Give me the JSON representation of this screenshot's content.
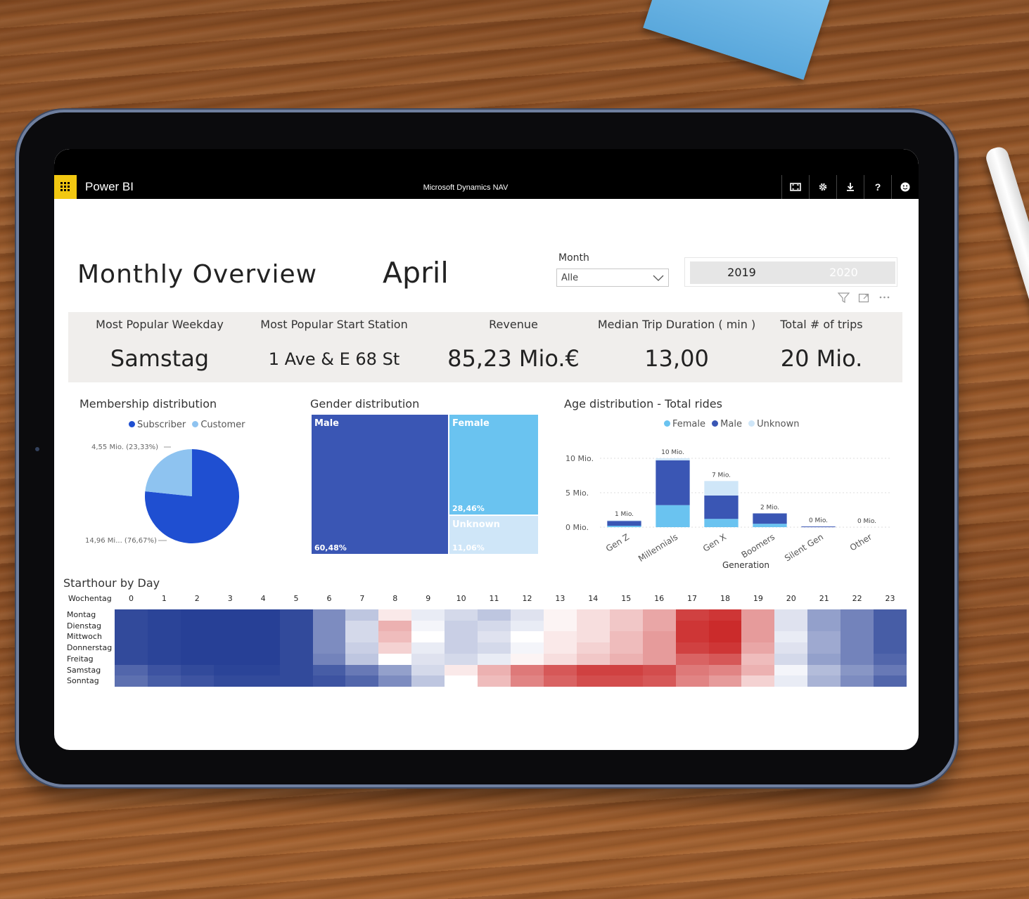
{
  "app": {
    "name": "Power BI",
    "report": "Microsoft Dynamics NAV"
  },
  "toolbar": {
    "icons": [
      "fullscreen-icon",
      "gear-icon",
      "download-icon",
      "help-icon",
      "feedback-icon"
    ],
    "help_glyph": "?"
  },
  "page": {
    "title": "Monthly Overview",
    "selected_month": "April"
  },
  "slicer": {
    "label": "Month",
    "value": "Alle",
    "years": [
      "2019",
      "2020"
    ]
  },
  "kpis": [
    {
      "label": "Most Popular Weekday",
      "value": "Samstag"
    },
    {
      "label": "Most Popular Start Station",
      "value": "1 Ave & E 68 St"
    },
    {
      "label": "Revenue",
      "value": "85,23 Mio.€"
    },
    {
      "label": "Median Trip Duration ( min )",
      "value": "13,00"
    },
    {
      "label": "Total # of trips",
      "value": "20 Mio."
    }
  ],
  "colors": {
    "accent": "#f2c811",
    "dark_blue": "#3a56b4",
    "light_blue": "#6ac3f0",
    "pale_blue": "#cfe6f8",
    "red": "#c62828"
  },
  "membership": {
    "title": "Membership distribution",
    "legend": [
      "Subscriber",
      "Customer"
    ],
    "labels": {
      "customer": "4,55 Mio. (23,33%)",
      "subscriber": "14,96 Mi... (76,67%)"
    }
  },
  "gender": {
    "title": "Gender distribution",
    "labels": {
      "male": "Male",
      "female": "Female",
      "unknown": "Unknown"
    },
    "pcts": {
      "male": "60,48%",
      "female": "28,46%",
      "unknown": "11,06%"
    }
  },
  "age": {
    "title": "Age distribution - Total rides",
    "xlabel": "Generation",
    "legend": [
      "Female",
      "Male",
      "Unknown"
    ],
    "bar_labels": [
      "1 Mio.",
      "10 Mio.",
      "7 Mio.",
      "2 Mio.",
      "0 Mio.",
      "0 Mio."
    ]
  },
  "heatmap": {
    "title": "Starthour by Day",
    "row_header": "Wochentag"
  },
  "chart_data": [
    {
      "type": "pie",
      "title": "Membership distribution",
      "categories": [
        "Subscriber",
        "Customer"
      ],
      "values": [
        14.96,
        4.55
      ],
      "unit": "Mio.",
      "colors": [
        "#1f4fd1",
        "#8ec3f0"
      ]
    },
    {
      "type": "treemap",
      "title": "Gender distribution",
      "categories": [
        "Male",
        "Female",
        "Unknown"
      ],
      "values": [
        60.48,
        28.46,
        11.06
      ],
      "unit": "%"
    },
    {
      "type": "bar",
      "title": "Age distribution - Total rides",
      "xlabel": "Generation",
      "categories": [
        "Gen Z",
        "Millennials",
        "Gen X",
        "Boomers",
        "Silent Gen",
        "Other"
      ],
      "series": [
        {
          "name": "Female",
          "color": "#6ac3f0",
          "values": [
            0.2,
            3.2,
            1.2,
            0.5,
            0.0,
            0.0
          ]
        },
        {
          "name": "Male",
          "color": "#3a56b4",
          "values": [
            0.7,
            6.5,
            3.4,
            1.5,
            0.1,
            0.0
          ]
        },
        {
          "name": "Unknown",
          "color": "#cfe6f8",
          "values": [
            0.1,
            0.3,
            2.1,
            0.0,
            0.0,
            0.0
          ]
        }
      ],
      "totals_labels": [
        "1 Mio.",
        "10 Mio.",
        "7 Mio.",
        "2 Mio.",
        "0 Mio.",
        "0 Mio."
      ],
      "yticks": [
        "0 Mio.",
        "5 Mio.",
        "10 Mio."
      ],
      "ylim": [
        0,
        10
      ],
      "grid": true,
      "legend_position": "top"
    },
    {
      "type": "heatmap",
      "title": "Starthour by Day",
      "row_header": "Wochentag",
      "rows": [
        "Montag",
        "Dienstag",
        "Mittwoch",
        "Donnerstag",
        "Freitag",
        "Samstag",
        "Sonntag"
      ],
      "columns": [
        "0",
        "1",
        "2",
        "3",
        "4",
        "5",
        "6",
        "7",
        "8",
        "9",
        "10",
        "11",
        "12",
        "13",
        "14",
        "15",
        "16",
        "17",
        "18",
        "19",
        "20",
        "21",
        "22",
        "23"
      ],
      "values": [
        [
          -0.95,
          -0.98,
          -1,
          -1,
          -1,
          -0.95,
          -0.6,
          -0.3,
          0.1,
          -0.1,
          -0.2,
          -0.3,
          -0.15,
          0.05,
          0.15,
          0.25,
          0.4,
          0.85,
          0.9,
          0.45,
          -0.15,
          -0.5,
          -0.65,
          -0.85
        ],
        [
          -0.95,
          -0.98,
          -1,
          -1,
          -1,
          -0.95,
          -0.6,
          -0.2,
          0.35,
          -0.05,
          -0.25,
          -0.2,
          -0.1,
          0.05,
          0.15,
          0.25,
          0.4,
          0.9,
          0.95,
          0.45,
          -0.15,
          -0.5,
          -0.65,
          -0.85
        ],
        [
          -0.95,
          -0.98,
          -1,
          -1,
          -1,
          -0.95,
          -0.6,
          -0.2,
          0.3,
          0.0,
          -0.25,
          -0.15,
          0.0,
          0.1,
          0.15,
          0.3,
          0.45,
          0.9,
          0.95,
          0.45,
          -0.1,
          -0.45,
          -0.65,
          -0.85
        ],
        [
          -0.95,
          -0.98,
          -1,
          -1,
          -1,
          -0.95,
          -0.6,
          -0.25,
          0.2,
          -0.1,
          -0.25,
          -0.2,
          -0.05,
          0.1,
          0.2,
          0.3,
          0.45,
          0.85,
          0.9,
          0.4,
          -0.15,
          -0.45,
          -0.65,
          -0.85
        ],
        [
          -0.95,
          -0.98,
          -1,
          -1,
          -1,
          -0.95,
          -0.65,
          -0.3,
          0.0,
          -0.15,
          -0.2,
          -0.1,
          0.05,
          0.15,
          0.25,
          0.35,
          0.45,
          0.7,
          0.75,
          0.3,
          -0.2,
          -0.5,
          -0.65,
          -0.8
        ],
        [
          -0.8,
          -0.9,
          -0.95,
          -0.98,
          -0.98,
          -0.95,
          -0.85,
          -0.7,
          -0.5,
          -0.2,
          0.1,
          0.35,
          0.6,
          0.75,
          0.85,
          0.85,
          0.8,
          0.6,
          0.55,
          0.35,
          -0.05,
          -0.35,
          -0.55,
          -0.7
        ],
        [
          -0.75,
          -0.85,
          -0.9,
          -0.95,
          -0.95,
          -0.95,
          -0.9,
          -0.8,
          -0.6,
          -0.3,
          0.0,
          0.3,
          0.55,
          0.7,
          0.8,
          0.8,
          0.75,
          0.55,
          0.45,
          0.2,
          -0.1,
          -0.4,
          -0.6,
          -0.8
        ]
      ]
    }
  ]
}
